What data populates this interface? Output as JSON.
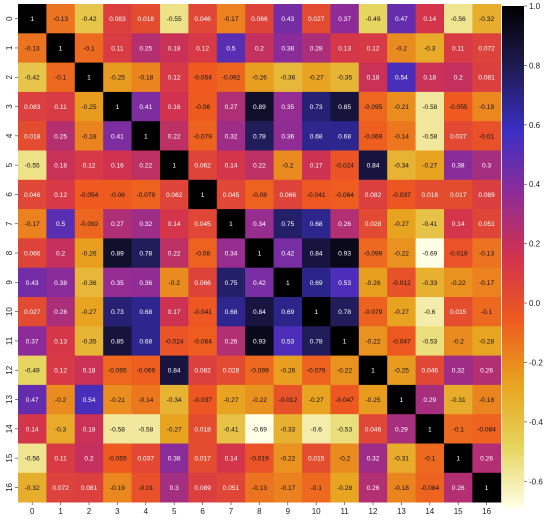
{
  "chart_data": {
    "type": "heatmap",
    "x_labels": [
      "0",
      "1",
      "2",
      "3",
      "4",
      "5",
      "6",
      "7",
      "8",
      "9",
      "10",
      "11",
      "12",
      "13",
      "14",
      "15",
      "16"
    ],
    "y_labels": [
      "0",
      "1",
      "2",
      "3",
      "4",
      "5",
      "6",
      "7",
      "8",
      "9",
      "10",
      "11",
      "12",
      "13",
      "14",
      "15",
      "16"
    ],
    "values": [
      [
        "1",
        "-0.13",
        "-0.42",
        "0.083",
        "0.018",
        "-0.55",
        "0.046",
        "-0.17",
        "0.066",
        "0.43",
        "0.027",
        "0.37",
        "-0.49",
        "0.47",
        "0.14",
        "-0.56",
        "-0.32"
      ],
      [
        "-0.13",
        "1",
        "-0.1",
        "0.11",
        "0.25",
        "0.18",
        "0.12",
        "0.5",
        "0.2",
        "0.38",
        "0.28",
        "0.13",
        "0.12",
        "-0.2",
        "-0.3",
        "0.11",
        "0.072"
      ],
      [
        "-0.42",
        "-0.1",
        "1",
        "-0.25",
        "-0.18",
        "0.12",
        "-0.054",
        "-0.092",
        "-0.26",
        "-0.36",
        "-0.27",
        "-0.35",
        "0.18",
        "0.54",
        "0.18",
        "0.2",
        "0.081"
      ],
      [
        "0.083",
        "0.11",
        "-0.25",
        "1",
        "0.41",
        "0.16",
        "-0.06",
        "0.27",
        "0.89",
        "0.35",
        "0.73",
        "0.85",
        "-0.095",
        "-0.21",
        "-0.58",
        "-0.055",
        "-0.19"
      ],
      [
        "0.018",
        "0.25",
        "-0.18",
        "0.41",
        "1",
        "0.22",
        "-0.079",
        "0.32",
        "0.78",
        "0.36",
        "0.68",
        "0.68",
        "-0.069",
        "-0.14",
        "-0.58",
        "0.037",
        "-0.01"
      ],
      [
        "-0.55",
        "0.18",
        "0.12",
        "0.16",
        "0.22",
        "1",
        "0.062",
        "0.14",
        "0.22",
        "-0.2",
        "0.17",
        "-0.024",
        "0.84",
        "-0.34",
        "-0.27",
        "0.38",
        "0.3"
      ],
      [
        "0.046",
        "0.12",
        "-0.054",
        "-0.06",
        "-0.079",
        "0.062",
        "1",
        "0.045",
        "-0.08",
        "0.066",
        "-0.041",
        "-0.064",
        "0.082",
        "-0.037",
        "0.018",
        "0.017",
        "0.089"
      ],
      [
        "-0.17",
        "0.5",
        "-0.092",
        "0.27",
        "0.32",
        "0.14",
        "0.045",
        "1",
        "0.34",
        "0.75",
        "0.68",
        "0.26",
        "0.028",
        "-0.27",
        "-0.41",
        "0.14",
        "0.051"
      ],
      [
        "0.066",
        "0.2",
        "-0.26",
        "0.89",
        "0.78",
        "0.22",
        "-0.08",
        "0.34",
        "1",
        "0.42",
        "0.84",
        "0.93",
        "-0.099",
        "-0.22",
        "-0.69",
        "-0.019",
        "-0.13"
      ],
      [
        "0.43",
        "0.38",
        "-0.36",
        "0.35",
        "0.36",
        "-0.2",
        "0.066",
        "0.75",
        "0.42",
        "1",
        "0.69",
        "0.53",
        "-0.26",
        "-0.012",
        "-0.33",
        "-0.22",
        "-0.17"
      ],
      [
        "0.027",
        "0.28",
        "-0.27",
        "0.73",
        "0.68",
        "0.17",
        "-0.041",
        "0.68",
        "0.84",
        "0.69",
        "1",
        "0.78",
        "-0.079",
        "-0.27",
        "-0.6",
        "0.015",
        "-0.1"
      ],
      [
        "0.37",
        "0.13",
        "-0.35",
        "0.85",
        "0.68",
        "-0.024",
        "-0.064",
        "0.26",
        "0.93",
        "0.53",
        "0.78",
        "1",
        "-0.22",
        "-0.047",
        "-0.53",
        "-0.2",
        "-0.28"
      ],
      [
        "-0.49",
        "0.12",
        "0.18",
        "-0.095",
        "-0.069",
        "0.84",
        "0.082",
        "0.028",
        "-0.099",
        "-0.26",
        "-0.079",
        "-0.22",
        "1",
        "-0.25",
        "0.046",
        "0.32",
        "0.26"
      ],
      [
        "0.47",
        "-0.2",
        "0.54",
        "-0.21",
        "-0.14",
        "-0.34",
        "-0.037",
        "-0.27",
        "-0.22",
        "-0.012",
        "-0.27",
        "-0.047",
        "-0.25",
        "1",
        "0.29",
        "-0.31",
        "-0.18"
      ],
      [
        "0.14",
        "-0.3",
        "0.18",
        "-0.58",
        "-0.58",
        "-0.27",
        "0.018",
        "-0.41",
        "-0.69",
        "-0.33",
        "-0.6",
        "-0.53",
        "0.046",
        "0.29",
        "1",
        "-0.1",
        "-0.084"
      ],
      [
        "-0.56",
        "0.11",
        "0.2",
        "-0.055",
        "0.037",
        "0.38",
        "0.017",
        "0.14",
        "-0.019",
        "-0.22",
        "0.015",
        "-0.2",
        "0.32",
        "-0.31",
        "-0.1",
        "1",
        "0.26"
      ],
      [
        "-0.32",
        "0.072",
        "0.081",
        "-0.19",
        "-0.01",
        "0.3",
        "0.089",
        "0.051",
        "-0.13",
        "-0.17",
        "-0.1",
        "-0.28",
        "0.26",
        "-0.18",
        "-0.084",
        "0.26",
        "1"
      ]
    ],
    "colorbar": {
      "min": -0.69,
      "max": 1.0,
      "ticks": [
        "1.0",
        "0.8",
        "0.6",
        "0.4",
        "0.2",
        "0.0",
        "-0.2",
        "-0.4",
        "-0.6"
      ],
      "colormap": "CMRmap_r",
      "stops": [
        "#ffffe6",
        "#e5d35a",
        "#e8a21f",
        "#ee5a1f",
        "#d2324e",
        "#8f2c97",
        "#3a2fc4",
        "#1f1c55",
        "#000000"
      ]
    },
    "title": "",
    "xlabel": "",
    "ylabel": "",
    "grid": false,
    "legend": "colorbar-right"
  }
}
